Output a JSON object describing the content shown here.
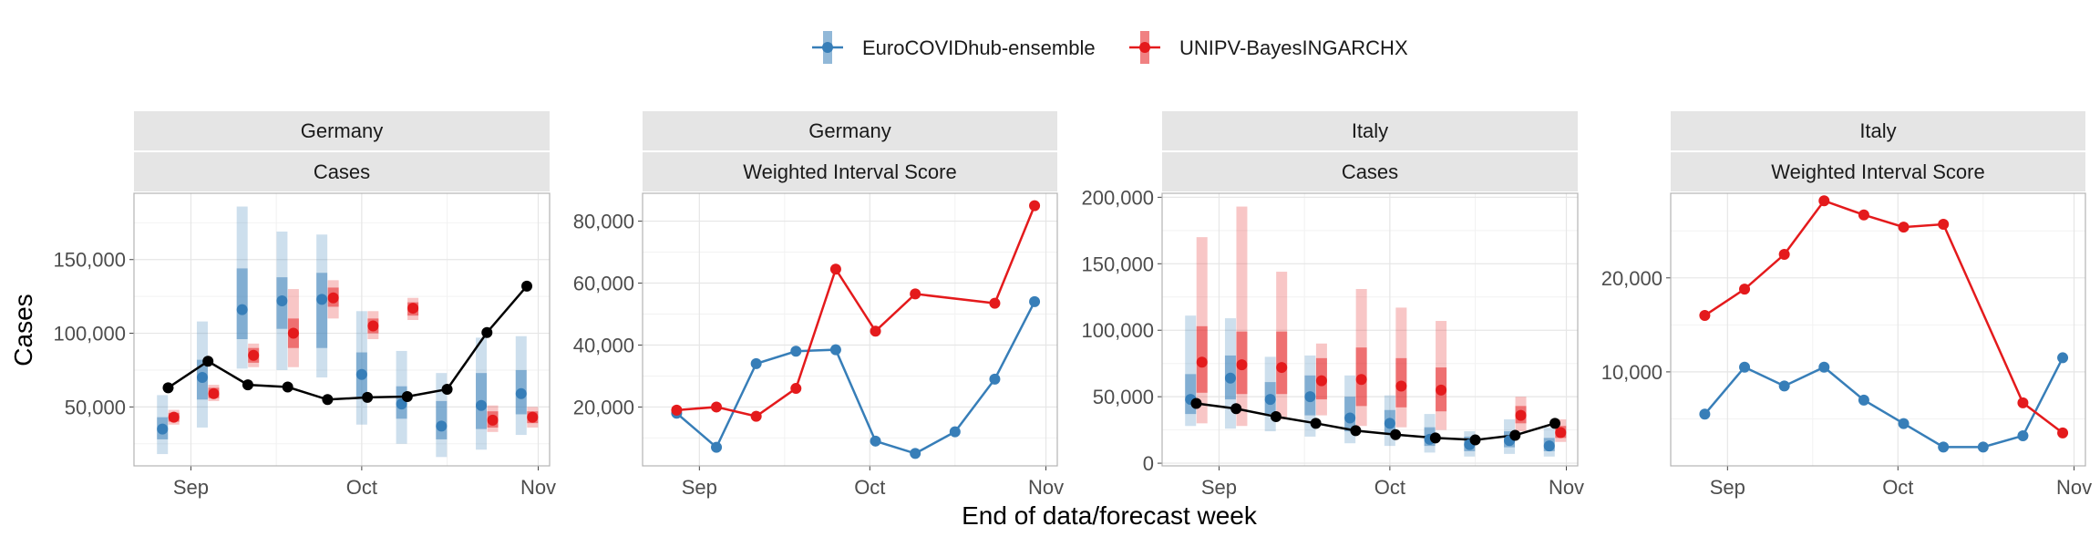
{
  "legend": {
    "items": [
      {
        "label": "EuroCOVIDhub-ensemble",
        "color": "#377eb8"
      },
      {
        "label": "UNIPV-BayesINGARCHX",
        "color": "#e41a1c"
      }
    ]
  },
  "axis": {
    "ylabel": "Cases",
    "xlabel": "End of data/forecast week",
    "x_ticks": [
      "Sep",
      "Oct",
      "Nov"
    ]
  },
  "chart_data": [
    {
      "type": "line",
      "strip_top": "Germany",
      "strip_bottom": "Cases",
      "x_weeks": [
        "2021-08-28",
        "2021-09-04",
        "2021-09-11",
        "2021-09-18",
        "2021-09-25",
        "2021-10-02",
        "2021-10-09",
        "2021-10-16",
        "2021-10-23",
        "2021-10-30"
      ],
      "ylim": [
        10000,
        195000
      ],
      "y_ticks": [
        50000,
        100000,
        150000
      ],
      "y_tick_labels": [
        "50,000",
        "100,000",
        "150,000"
      ],
      "observed": [
        63000,
        81000,
        65000,
        63500,
        55000,
        56500,
        57000,
        62000,
        100500,
        132000
      ],
      "forecasts": [
        {
          "name": "EuroCOVIDhub-ensemble",
          "color": "#377eb8",
          "x": [
            "2021-08-27",
            "2021-09-03",
            "2021-09-10",
            "2021-09-17",
            "2021-09-24",
            "2021-10-01",
            "2021-10-08",
            "2021-10-15",
            "2021-10-22",
            "2021-10-29"
          ],
          "median": [
            35000,
            70000,
            116000,
            122000,
            123000,
            72000,
            52000,
            37000,
            51000,
            59000
          ],
          "inner": [
            [
              28000,
              43000
            ],
            [
              55000,
              82000
            ],
            [
              96000,
              144000
            ],
            [
              103000,
              138000
            ],
            [
              90000,
              141000
            ],
            [
              57000,
              87000
            ],
            [
              42000,
              64000
            ],
            [
              28000,
              54000
            ],
            [
              35000,
              73000
            ],
            [
              45000,
              75000
            ]
          ],
          "outer": [
            [
              18000,
              58000
            ],
            [
              36000,
              108000
            ],
            [
              76000,
              186000
            ],
            [
              75000,
              169000
            ],
            [
              70000,
              167000
            ],
            [
              38000,
              115000
            ],
            [
              25000,
              88000
            ],
            [
              16000,
              73000
            ],
            [
              21000,
              97000
            ],
            [
              31000,
              98000
            ]
          ]
        },
        {
          "name": "UNIPV-BayesINGARCHX",
          "color": "#e41a1c",
          "x": [
            "2021-08-29",
            "2021-09-05",
            "2021-09-12",
            "2021-09-19",
            "2021-09-26",
            "2021-10-03",
            "2021-10-10",
            "2021-10-24",
            "2021-10-31"
          ],
          "median": [
            43000,
            59000,
            85000,
            100000,
            124000,
            105000,
            117000,
            41000,
            43000
          ],
          "inner": [
            [
              40000,
              46000
            ],
            [
              56000,
              63000
            ],
            [
              80000,
              90000
            ],
            [
              90000,
              110000
            ],
            [
              118000,
              131000
            ],
            [
              100000,
              110000
            ],
            [
              112000,
              121000
            ],
            [
              36000,
              47000
            ],
            [
              39000,
              47000
            ]
          ],
          "outer": [
            [
              38000,
              48000
            ],
            [
              54000,
              65000
            ],
            [
              77000,
              93000
            ],
            [
              77000,
              130000
            ],
            [
              110000,
              136000
            ],
            [
              96000,
              115000
            ],
            [
              109000,
              124000
            ],
            [
              33000,
              51000
            ],
            [
              36000,
              50000
            ]
          ]
        }
      ]
    },
    {
      "type": "line",
      "strip_top": "Germany",
      "strip_bottom": "Weighted Interval Score",
      "ylim": [
        1000,
        89000
      ],
      "y_ticks": [
        20000,
        40000,
        60000,
        80000
      ],
      "y_tick_labels": [
        "20,000",
        "40,000",
        "60,000",
        "80,000"
      ],
      "series": [
        {
          "name": "EuroCOVIDhub-ensemble",
          "color": "#377eb8",
          "x": [
            "2021-08-28",
            "2021-09-04",
            "2021-09-11",
            "2021-09-18",
            "2021-09-25",
            "2021-10-02",
            "2021-10-09",
            "2021-10-16",
            "2021-10-23",
            "2021-10-30"
          ],
          "values": [
            18000,
            7000,
            34000,
            38000,
            38500,
            9000,
            5000,
            12000,
            29000,
            54000
          ]
        },
        {
          "name": "UNIPV-BayesINGARCHX",
          "color": "#e41a1c",
          "x": [
            "2021-08-28",
            "2021-09-04",
            "2021-09-11",
            "2021-09-18",
            "2021-09-25",
            "2021-10-02",
            "2021-10-09",
            "2021-10-23",
            "2021-10-30"
          ],
          "values": [
            19000,
            20000,
            17000,
            26000,
            64500,
            44500,
            56500,
            53500,
            85000
          ]
        }
      ]
    },
    {
      "type": "line",
      "strip_top": "Italy",
      "strip_bottom": "Cases",
      "x_weeks": [
        "2021-08-28",
        "2021-09-04",
        "2021-09-11",
        "2021-09-18",
        "2021-09-25",
        "2021-10-02",
        "2021-10-09",
        "2021-10-16",
        "2021-10-23",
        "2021-10-30"
      ],
      "ylim": [
        -2000,
        203000
      ],
      "y_ticks": [
        0,
        50000,
        100000,
        150000,
        200000
      ],
      "y_tick_labels": [
        "0",
        "50,000",
        "100,000",
        "150,000",
        "200,000"
      ],
      "observed": [
        45000,
        41000,
        35000,
        30000,
        24500,
        21500,
        19000,
        17500,
        21000,
        30000
      ],
      "forecasts": [
        {
          "name": "EuroCOVIDhub-ensemble",
          "color": "#377eb8",
          "x": [
            "2021-08-27",
            "2021-09-03",
            "2021-09-10",
            "2021-09-17",
            "2021-09-24",
            "2021-10-01",
            "2021-10-08",
            "2021-10-15",
            "2021-10-22",
            "2021-10-29"
          ],
          "median": [
            48000,
            64000,
            48000,
            50000,
            34000,
            30000,
            18000,
            14000,
            17000,
            13000
          ],
          "inner": [
            [
              37000,
              67000
            ],
            [
              48000,
              81000
            ],
            [
              37000,
              61000
            ],
            [
              36000,
              66000
            ],
            [
              24000,
              50000
            ],
            [
              22000,
              40000
            ],
            [
              13000,
              27000
            ],
            [
              9000,
              20000
            ],
            [
              12000,
              24000
            ],
            [
              9000,
              19000
            ]
          ],
          "outer": [
            [
              28000,
              111000
            ],
            [
              26000,
              109000
            ],
            [
              24000,
              80000
            ],
            [
              20000,
              81000
            ],
            [
              15000,
              66000
            ],
            [
              13000,
              51000
            ],
            [
              8000,
              37000
            ],
            [
              5000,
              24000
            ],
            [
              7000,
              33000
            ],
            [
              5000,
              27000
            ]
          ]
        },
        {
          "name": "UNIPV-BayesINGARCHX",
          "color": "#e41a1c",
          "x": [
            "2021-08-29",
            "2021-09-05",
            "2021-09-12",
            "2021-09-19",
            "2021-09-26",
            "2021-10-03",
            "2021-10-10",
            "2021-10-24",
            "2021-10-31"
          ],
          "median": [
            76000,
            74000,
            72000,
            62000,
            63000,
            58000,
            55000,
            36000,
            23000
          ],
          "inner": [
            [
              53000,
              103000
            ],
            [
              52000,
              99000
            ],
            [
              52000,
              99000
            ],
            [
              48000,
              79000
            ],
            [
              43000,
              87000
            ],
            [
              42000,
              79000
            ],
            [
              39000,
              72000
            ],
            [
              30000,
              43000
            ],
            [
              19000,
              28000
            ]
          ],
          "outer": [
            [
              30000,
              170000
            ],
            [
              28000,
              193000
            ],
            [
              33000,
              144000
            ],
            [
              36000,
              90000
            ],
            [
              28000,
              131000
            ],
            [
              27000,
              117000
            ],
            [
              25000,
              107000
            ],
            [
              24000,
              50000
            ],
            [
              16000,
              33000
            ]
          ]
        }
      ]
    },
    {
      "type": "line",
      "strip_top": "Italy",
      "strip_bottom": "Weighted Interval Score",
      "ylim": [
        0,
        29000
      ],
      "y_ticks": [
        10000,
        20000
      ],
      "y_tick_labels": [
        "10,000",
        "20,000"
      ],
      "series": [
        {
          "name": "EuroCOVIDhub-ensemble",
          "color": "#377eb8",
          "x": [
            "2021-08-28",
            "2021-09-04",
            "2021-09-11",
            "2021-09-18",
            "2021-09-25",
            "2021-10-02",
            "2021-10-09",
            "2021-10-16",
            "2021-10-23",
            "2021-10-30"
          ],
          "values": [
            5500,
            10500,
            8500,
            10500,
            7000,
            4500,
            2000,
            2000,
            3200,
            11500
          ]
        },
        {
          "name": "UNIPV-BayesINGARCHX",
          "color": "#e41a1c",
          "x": [
            "2021-08-28",
            "2021-09-04",
            "2021-09-11",
            "2021-09-18",
            "2021-09-25",
            "2021-10-02",
            "2021-10-09",
            "2021-10-23",
            "2021-10-30"
          ],
          "values": [
            16000,
            18800,
            22500,
            28200,
            26700,
            25400,
            25700,
            6700,
            3500
          ]
        }
      ]
    }
  ]
}
